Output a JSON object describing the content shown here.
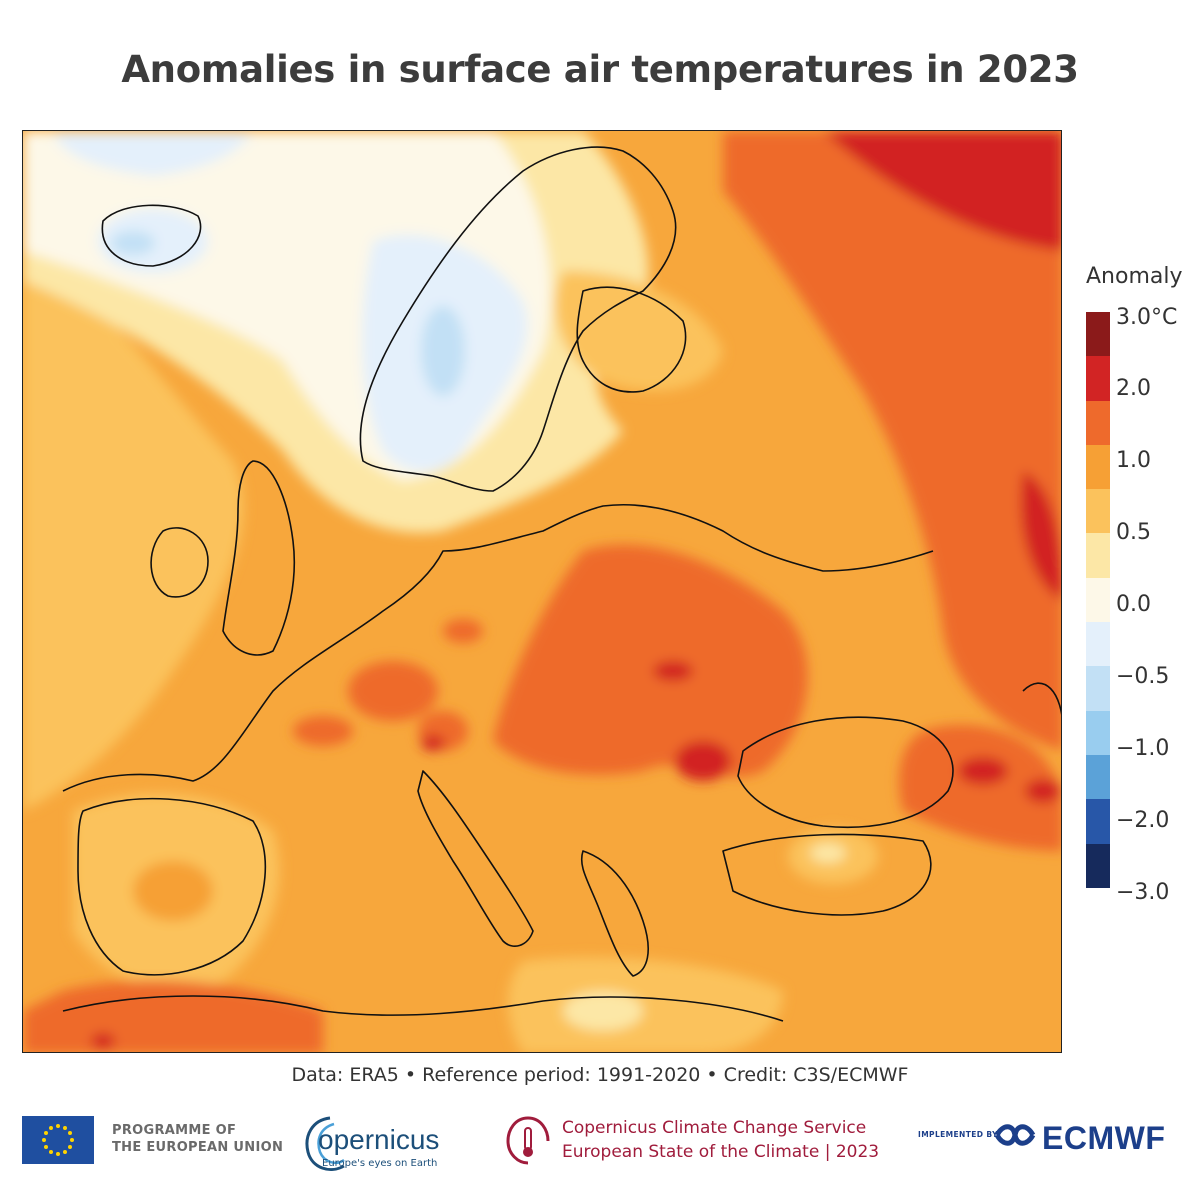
{
  "title": "Anomalies in surface air temperatures in 2023",
  "map": {
    "region": "Europe",
    "variable": "Surface air temperature anomaly"
  },
  "legend": {
    "title": "Anomaly",
    "labels": [
      "3.0°C",
      "2.0",
      "1.0",
      "0.5",
      "0.0",
      "−0.5",
      "−1.0",
      "−2.0",
      "−3.0"
    ],
    "colors": [
      "#8b1a1a",
      "#d22424",
      "#ee6a2c",
      "#f6a035",
      "#fbc25c",
      "#fce7a6",
      "#fdf8e8",
      "#e4f0fb",
      "#c2e0f5",
      "#99cdef",
      "#5ba2d8",
      "#2857a8",
      "#162a5c"
    ]
  },
  "credit": "Data: ERA5 • Reference period: 1991-2020 • Credit: C3S/ECMWF",
  "footer": {
    "eu_line1": "PROGRAMME OF",
    "eu_line2": "THE EUROPEAN UNION",
    "copernicus_word": "opernicus",
    "copernicus_tagline": "Europe's eyes on Earth",
    "c3s_line1": "Copernicus Climate Change Service",
    "c3s_line2": "European State of the Climate | 2023",
    "implemented_by": "IMPLEMENTED BY",
    "ecmwf": "ECMWF"
  }
}
